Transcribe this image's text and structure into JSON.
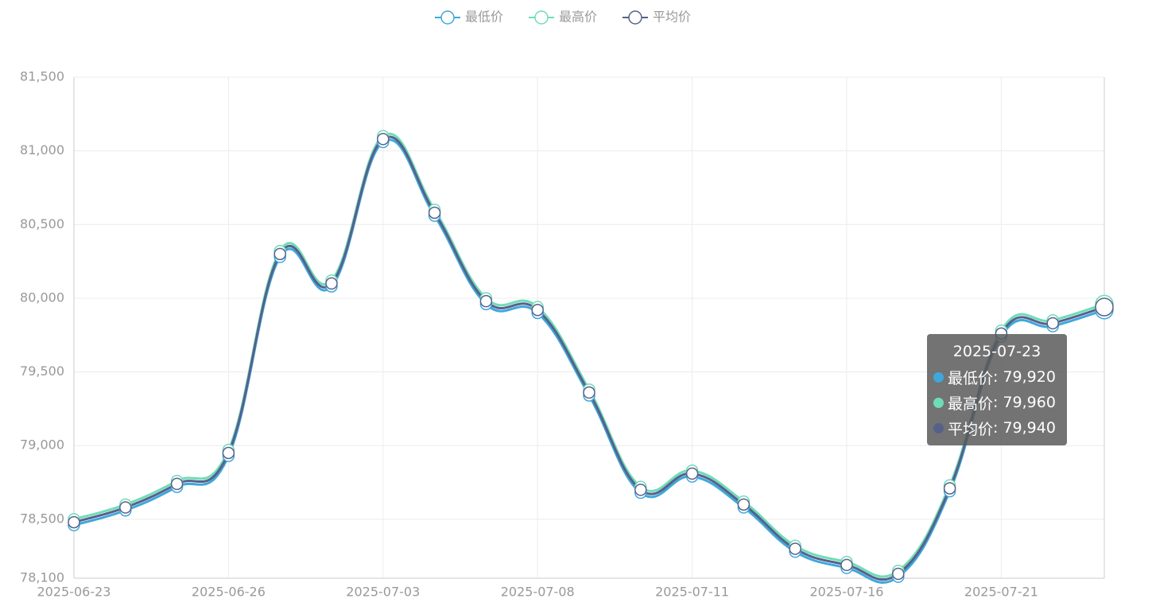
{
  "chart_data": {
    "type": "line",
    "smooth": true,
    "grid": true,
    "legend": "top",
    "categories": [
      "2025-06-23",
      null,
      null,
      "2025-06-26",
      null,
      null,
      "2025-07-03",
      null,
      null,
      "2025-07-08",
      null,
      null,
      "2025-07-11",
      null,
      null,
      "2025-07-16",
      null,
      null,
      "2025-07-21",
      null,
      null
    ],
    "series": [
      {
        "name": "最低价",
        "color": "#3fa7dc",
        "values": [
          78460,
          78560,
          78720,
          78930,
          80280,
          80080,
          81060,
          80560,
          79960,
          79900,
          79340,
          78680,
          78790,
          78580,
          78280,
          78170,
          78110,
          78690,
          79740,
          79810,
          79920
        ]
      },
      {
        "name": "最高价",
        "color": "#6fdcb8",
        "values": [
          78500,
          78600,
          78760,
          78970,
          80320,
          80120,
          81100,
          80600,
          80000,
          79940,
          79380,
          78720,
          78830,
          78620,
          78320,
          78210,
          78150,
          78730,
          79780,
          79850,
          79960
        ]
      },
      {
        "name": "平均价",
        "color": "#56618a",
        "values": [
          78480,
          78580,
          78740,
          78950,
          80300,
          80100,
          81080,
          80580,
          79980,
          79920,
          79360,
          78700,
          78810,
          78600,
          78300,
          78190,
          78130,
          78710,
          79760,
          79830,
          79940
        ]
      }
    ],
    "ylim": [
      78100,
      81500
    ],
    "yticks": [
      {
        "value": 78100,
        "label": "78,100"
      },
      {
        "value": 78500,
        "label": "78,500"
      },
      {
        "value": 79000,
        "label": "79,000"
      },
      {
        "value": 79500,
        "label": "79,500"
      },
      {
        "value": 80000,
        "label": "80,000"
      },
      {
        "value": 80500,
        "label": "80,500"
      },
      {
        "value": 81000,
        "label": "81,000"
      },
      {
        "value": 81500,
        "label": "81,500"
      }
    ],
    "tooltip": {
      "title": "2025-07-23",
      "index": 20,
      "labels": [
        "79,920",
        "79,960",
        "79,940"
      ]
    }
  }
}
